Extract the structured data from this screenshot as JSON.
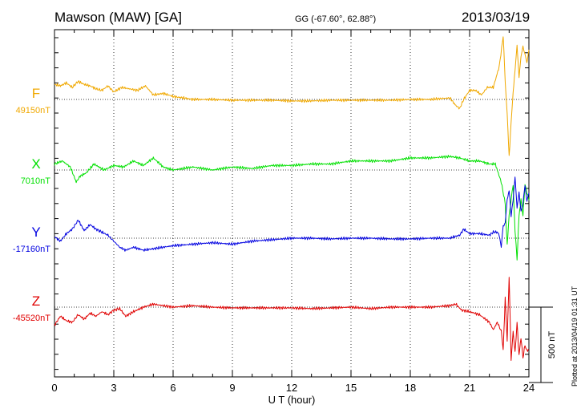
{
  "header": {
    "station": "Mawson (MAW)  [GA]",
    "coords": "GG (-67.60°,  62.88°)",
    "date": "2013/03/19"
  },
  "footer": {
    "plotted": "Plotted at 2013/04/19 01:31  UT"
  },
  "chart_data": {
    "type": "line",
    "title": "Mawson (MAW)  [GA]",
    "xlabel": "U T (hour)",
    "x_ticks": [
      "0",
      "3",
      "6",
      "9",
      "12",
      "15",
      "18",
      "21",
      "24"
    ],
    "xlim": [
      0,
      24
    ],
    "scale_bar_label": "500 nT",
    "scale_bar_nT": 500,
    "series": [
      {
        "name": "F",
        "baseline_label": "49150nT",
        "baseline_nT": 49150,
        "color": "#f0a800",
        "x": [
          0,
          0.3,
          0.6,
          0.9,
          1.2,
          1.5,
          1.8,
          2.1,
          2.4,
          2.7,
          3.0,
          3.4,
          3.8,
          4.2,
          4.6,
          5.0,
          5.5,
          6.0,
          6.5,
          7.0,
          8,
          9,
          10,
          11,
          12,
          13,
          14,
          15,
          16,
          17,
          18,
          19,
          20,
          20.3,
          20.5,
          20.7,
          21,
          21.3,
          21.6,
          21.9,
          22.2,
          22.5,
          22.7,
          22.8,
          22.9,
          23.0,
          23.1,
          23.2,
          23.3,
          23.4,
          23.5,
          23.6,
          23.7,
          23.8,
          23.9,
          24
        ],
        "y": [
          100,
          90,
          110,
          80,
          120,
          100,
          90,
          70,
          60,
          90,
          50,
          80,
          70,
          60,
          90,
          30,
          40,
          20,
          10,
          0,
          0,
          -5,
          -5,
          -5,
          -10,
          -10,
          -5,
          -5,
          -5,
          -5,
          0,
          0,
          10,
          -40,
          -60,
          0,
          60,
          60,
          30,
          80,
          80,
          220,
          420,
          120,
          -90,
          -380,
          -150,
          40,
          200,
          360,
          150,
          280,
          350,
          300,
          240,
          330
        ]
      },
      {
        "name": "X",
        "baseline_label": "7010nT",
        "baseline_nT": 7010,
        "color": "#00e000",
        "x": [
          0,
          0.4,
          0.8,
          1.1,
          1.3,
          1.6,
          2.0,
          2.5,
          3.0,
          3.5,
          4.0,
          4.5,
          5.0,
          5.5,
          6,
          7,
          8,
          9,
          10,
          11,
          12,
          13,
          14,
          15,
          16,
          17,
          18,
          19,
          20,
          20.5,
          21,
          21.5,
          22,
          22.3,
          22.6,
          22.8,
          22.9,
          23.0,
          23.1,
          23.2,
          23.3,
          23.4,
          23.5,
          23.6,
          23.7,
          23.8,
          23.9,
          24
        ],
        "y": [
          40,
          60,
          20,
          -80,
          -40,
          -20,
          40,
          0,
          30,
          20,
          60,
          30,
          80,
          20,
          0,
          20,
          0,
          20,
          10,
          30,
          30,
          40,
          40,
          60,
          60,
          60,
          80,
          80,
          90,
          80,
          60,
          60,
          40,
          40,
          -80,
          -220,
          -500,
          -300,
          -200,
          -100,
          -400,
          -600,
          -300,
          -200,
          -300,
          -100,
          -150,
          -200
        ]
      },
      {
        "name": "Y",
        "baseline_label": "-17160nT",
        "baseline_nT": -17160,
        "color": "#0000e0",
        "x": [
          0,
          0.3,
          0.6,
          0.9,
          1.2,
          1.5,
          1.8,
          2.1,
          2.4,
          2.7,
          3.0,
          3.3,
          3.6,
          4.0,
          4.5,
          5.0,
          6,
          7,
          8,
          9,
          10,
          11,
          12,
          13,
          14,
          15,
          16,
          17,
          18,
          19,
          20,
          20.5,
          20.7,
          21,
          21.5,
          22,
          22.2,
          22.4,
          22.5,
          22.6,
          22.7,
          22.8,
          22.9,
          23.0,
          23.1,
          23.2,
          23.3,
          23.4,
          23.5,
          23.6,
          23.7,
          23.8,
          23.9,
          24
        ],
        "y": [
          10,
          -20,
          30,
          60,
          120,
          50,
          90,
          60,
          40,
          20,
          -20,
          -60,
          -80,
          -60,
          -80,
          -70,
          -50,
          -40,
          -30,
          -40,
          -20,
          -10,
          0,
          0,
          -5,
          0,
          0,
          -5,
          -5,
          0,
          0,
          20,
          60,
          30,
          30,
          20,
          40,
          40,
          20,
          -60,
          80,
          100,
          250,
          320,
          140,
          260,
          400,
          200,
          300,
          180,
          230,
          350,
          250,
          300
        ]
      },
      {
        "name": "Z",
        "baseline_label": "-45520nT",
        "baseline_nT": -45520,
        "color": "#e00000",
        "x": [
          0,
          0.3,
          0.6,
          0.9,
          1.2,
          1.5,
          1.8,
          2.1,
          2.4,
          2.7,
          3.0,
          3.3,
          3.6,
          4.0,
          4.5,
          5.0,
          6,
          7,
          8,
          9,
          10,
          11,
          12,
          13,
          14,
          15,
          16,
          17,
          18,
          19,
          20,
          20.3,
          20.6,
          21,
          21.5,
          22,
          22.2,
          22.4,
          22.6,
          22.7,
          22.8,
          22.9,
          23.0,
          23.1,
          23.2,
          23.3,
          23.4,
          23.5,
          23.6,
          23.7,
          23.8,
          23.9,
          24
        ],
        "y": [
          -120,
          -60,
          -90,
          -100,
          -50,
          -80,
          -40,
          -60,
          -30,
          -50,
          -20,
          -10,
          -60,
          -30,
          0,
          20,
          0,
          10,
          0,
          -5,
          -5,
          -5,
          -5,
          -10,
          -5,
          0,
          -10,
          0,
          0,
          0,
          10,
          20,
          -20,
          -30,
          -50,
          -100,
          -150,
          -100,
          -160,
          -280,
          60,
          -220,
          200,
          -350,
          -160,
          -300,
          -100,
          -320,
          -200,
          -340,
          -250,
          -290,
          -280
        ]
      }
    ]
  }
}
